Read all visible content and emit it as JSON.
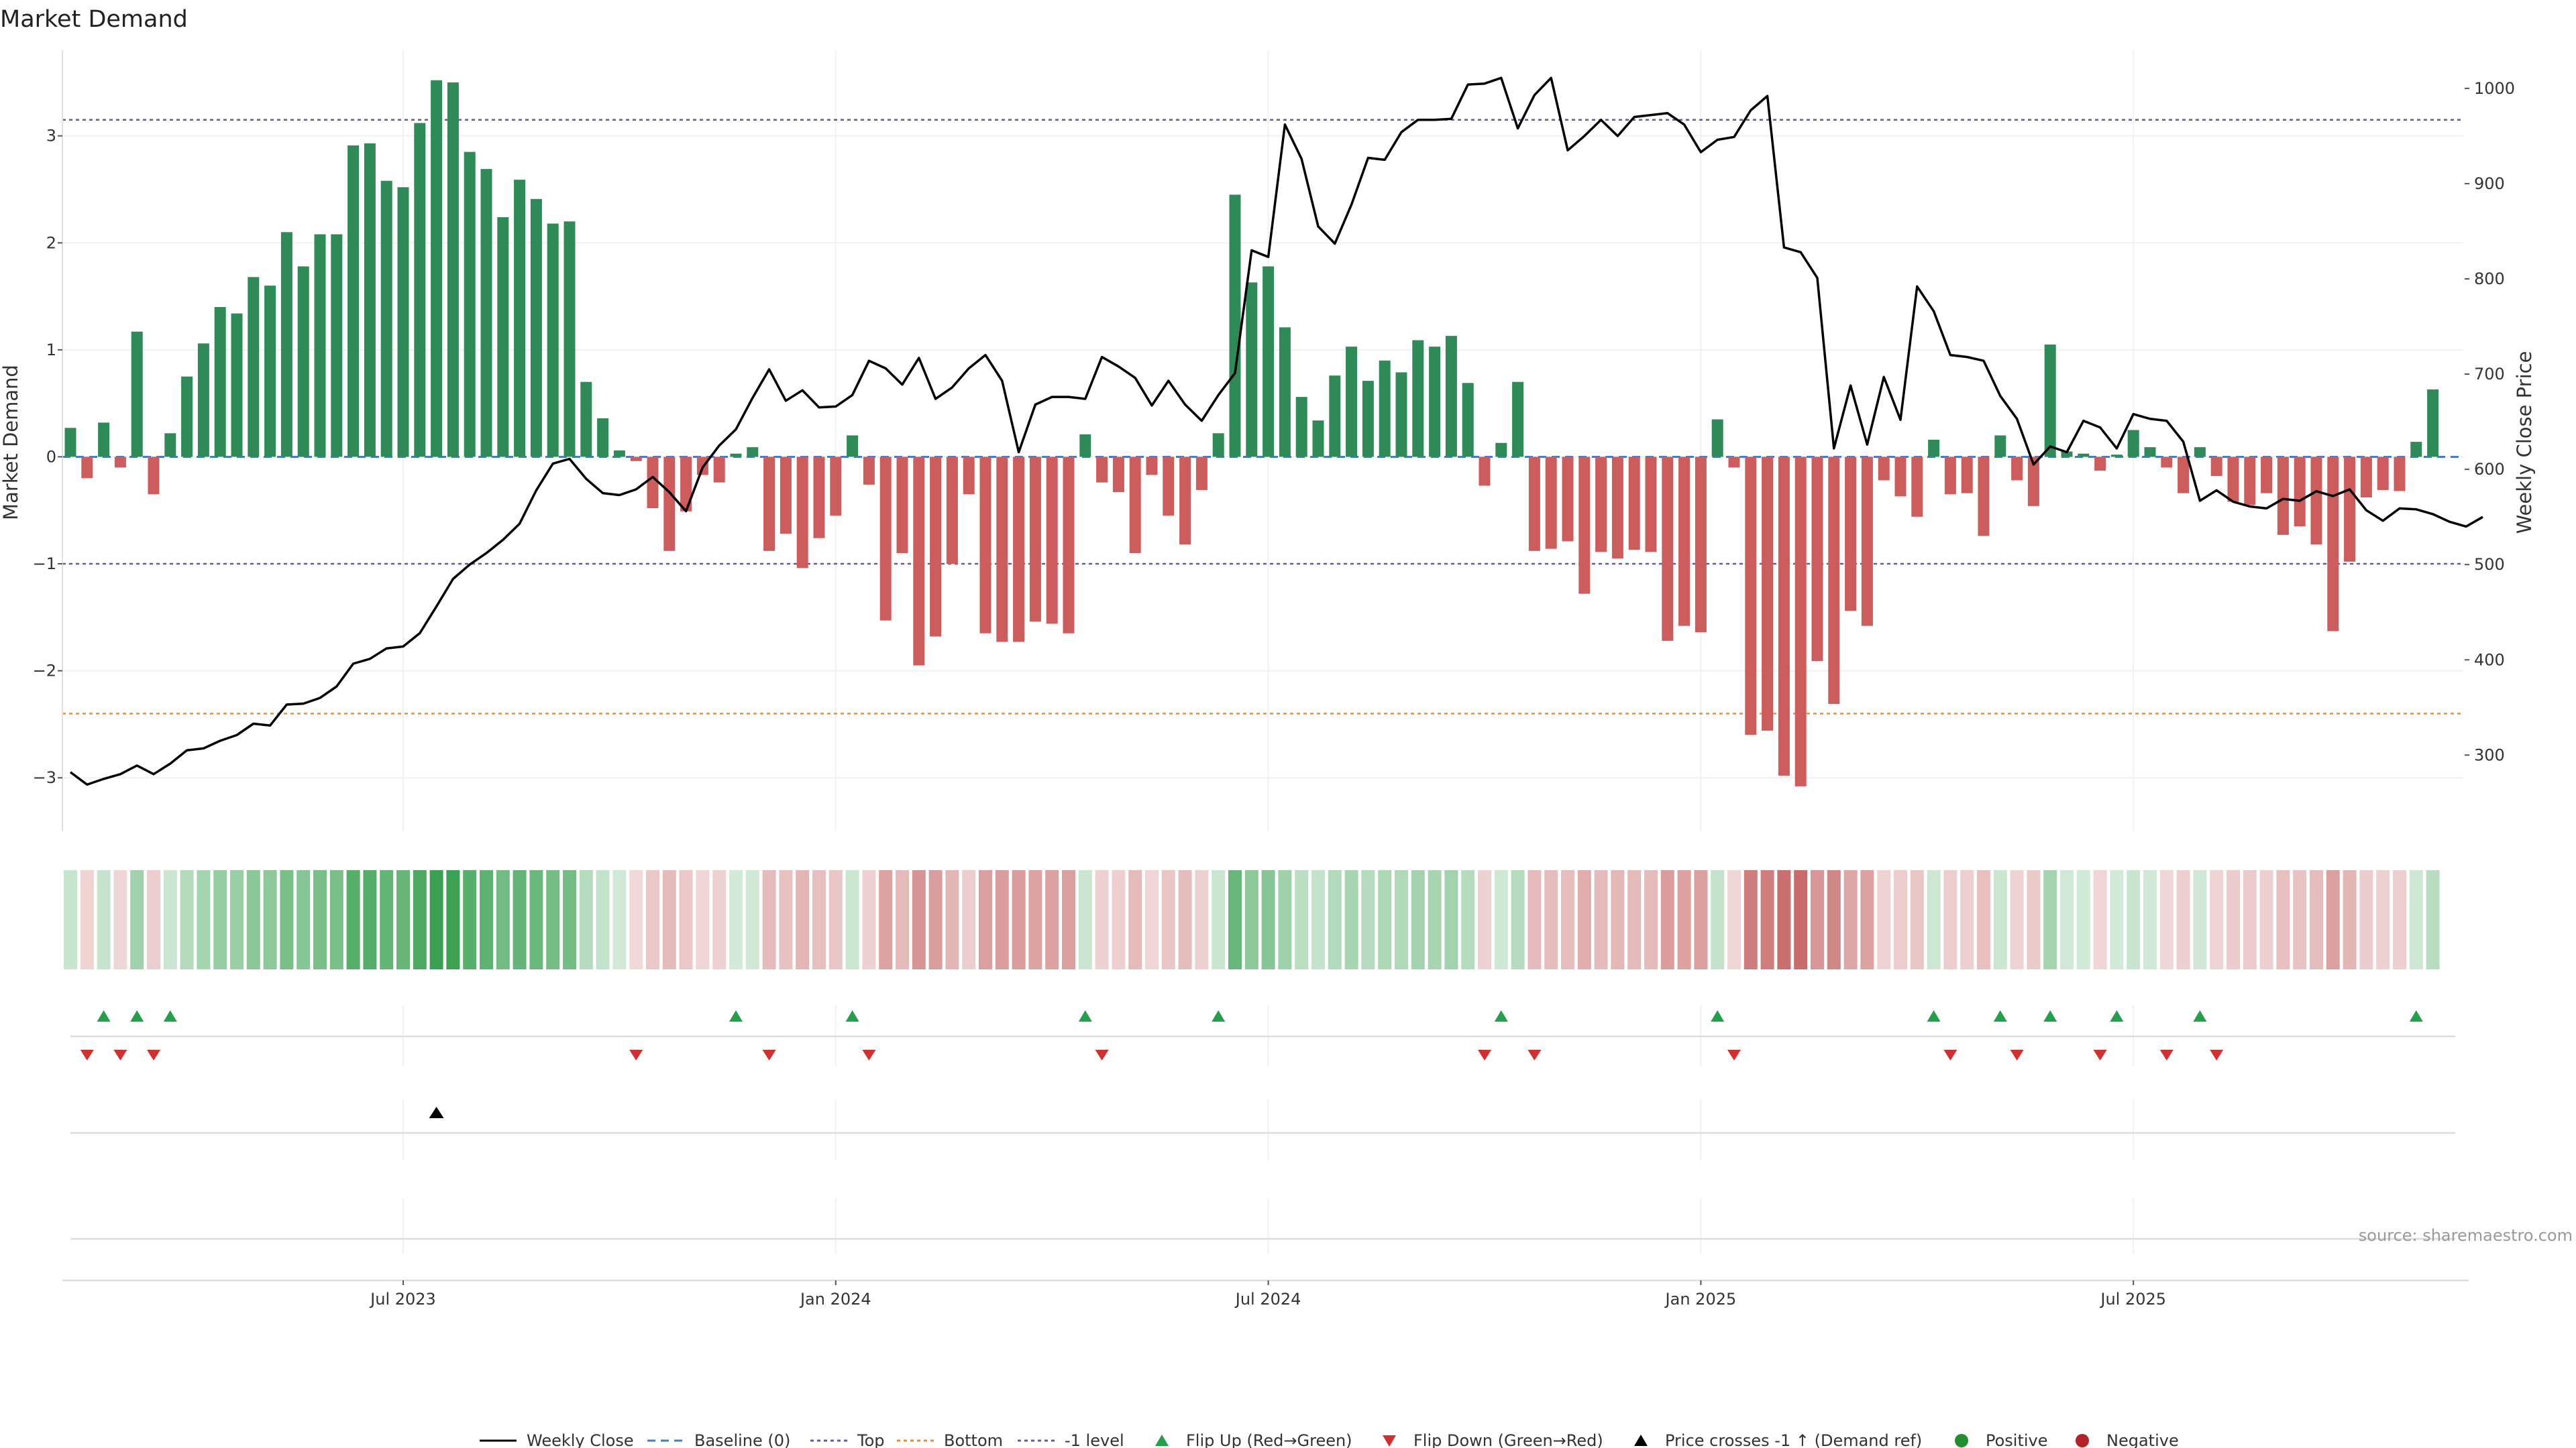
{
  "chart_data": {
    "type": "bar",
    "title": "Market Demand",
    "ylabel": "Market Demand",
    "y2label": "Weekly Close Price",
    "source": "source: sharemaestro.com",
    "ylim": [
      -3.5,
      3.8
    ],
    "y2lim": [
      220,
      1040
    ],
    "yticks": [
      -3,
      -2,
      -1,
      0,
      1,
      2,
      3
    ],
    "yticklabels": [
      "−3",
      "−2",
      "−1",
      "0",
      "1",
      "2",
      "3"
    ],
    "y2ticks": [
      300,
      400,
      500,
      600,
      700,
      800,
      900,
      1000
    ],
    "xticks": [
      {
        "label": "Jul 2023",
        "index": 20
      },
      {
        "label": "Jan 2024",
        "index": 46
      },
      {
        "label": "Jul 2024",
        "index": 72
      },
      {
        "label": "Jan 2025",
        "index": 98
      },
      {
        "label": "Jul 2025",
        "index": 124
      }
    ],
    "grid": true,
    "legend_position": "bottom",
    "levels": {
      "top": 3.15,
      "bottom": -2.4,
      "minus_one": -1.0,
      "baseline": 0
    },
    "demand": [
      0.27,
      -0.2,
      0.32,
      -0.1,
      1.17,
      -0.35,
      0.22,
      0.75,
      1.06,
      1.4,
      1.34,
      1.68,
      1.6,
      2.1,
      1.78,
      2.08,
      2.08,
      2.91,
      2.93,
      2.58,
      2.52,
      3.12,
      3.52,
      3.5,
      2.85,
      2.69,
      2.24,
      2.59,
      2.41,
      2.18,
      2.2,
      0.7,
      0.36,
      0.06,
      -0.04,
      -0.48,
      -0.88,
      -0.51,
      -0.17,
      -0.24,
      0.03,
      0.09,
      -0.88,
      -0.72,
      -1.04,
      -0.76,
      -0.55,
      0.2,
      -0.26,
      -1.53,
      -0.9,
      -1.95,
      -1.68,
      -1.0,
      -0.35,
      -1.65,
      -1.73,
      -1.73,
      -1.54,
      -1.56,
      -1.65,
      0.21,
      -0.24,
      -0.33,
      -0.9,
      -0.17,
      -0.55,
      -0.82,
      -0.31,
      0.22,
      2.45,
      1.63,
      1.78,
      1.21,
      0.56,
      0.34,
      0.76,
      1.03,
      0.71,
      0.9,
      0.79,
      1.09,
      1.03,
      1.13,
      0.69,
      -0.27,
      0.13,
      0.7,
      -0.88,
      -0.86,
      -0.79,
      -1.28,
      -0.89,
      -0.95,
      -0.87,
      -0.89,
      -1.72,
      -1.58,
      -1.64,
      0.35,
      -0.1,
      -2.6,
      -2.56,
      -2.98,
      -3.08,
      -1.91,
      -2.31,
      -1.44,
      -1.58,
      -0.22,
      -0.37,
      -0.56,
      0.16,
      -0.35,
      -0.34,
      -0.74,
      0.2,
      -0.22,
      -0.46,
      1.05,
      0.05,
      0.03,
      -0.13,
      0.02,
      0.25,
      0.09,
      -0.1,
      -0.34,
      0.09,
      -0.18,
      -0.42,
      -0.45,
      -0.34,
      -0.73,
      -0.65,
      -0.82,
      -1.63,
      -0.98,
      -0.38,
      -0.31,
      -0.32,
      0.14,
      0.63
    ],
    "weekly_close": [
      282,
      269,
      275,
      280,
      289,
      280,
      291,
      305,
      307,
      315,
      321,
      333,
      331,
      353,
      354,
      360,
      372,
      396,
      401,
      412,
      414,
      428,
      456,
      485,
      500,
      512,
      526,
      543,
      578,
      606,
      611,
      590,
      575,
      573,
      579,
      592,
      576,
      556,
      602,
      625,
      642,
      675,
      705,
      672,
      683,
      665,
      666,
      678,
      714,
      706,
      689,
      717,
      674,
      686,
      706,
      720,
      693,
      618,
      668,
      676,
      676,
      674,
      718,
      708,
      696,
      667,
      693,
      668,
      651,
      678,
      701,
      830,
      823,
      962,
      926,
      855,
      837,
      878,
      927,
      925,
      954,
      967,
      967,
      968,
      1004,
      1005,
      1011,
      958,
      993,
      1011,
      935,
      950,
      967,
      950,
      970,
      972,
      974,
      962,
      933,
      946,
      949,
      977,
      992,
      833,
      828,
      801,
      622,
      688,
      626,
      697,
      652,
      792,
      766,
      720,
      718,
      714,
      677,
      653,
      605,
      624,
      618,
      651,
      644,
      622,
      658,
      653,
      651,
      629,
      567,
      578,
      566,
      561,
      559,
      569,
      567,
      577,
      572,
      579,
      557,
      546,
      559,
      558,
      553,
      545,
      540,
      550
    ]
  },
  "legend": {
    "items": [
      {
        "label": "Weekly Close"
      },
      {
        "label": "Baseline (0)"
      },
      {
        "label": "Top"
      },
      {
        "label": "Bottom"
      },
      {
        "label": "-1 level"
      },
      {
        "label": "Flip Up (Red→Green)"
      },
      {
        "label": "Flip Down (Green→Red)"
      },
      {
        "label": "Price crosses -1 ↑ (Demand ref)"
      },
      {
        "label": "Positive"
      },
      {
        "label": "Negative"
      }
    ]
  },
  "colors": {
    "positive": "#2e8b57",
    "negative": "#cd5c5c",
    "heat_positive": "#3aa152",
    "heat_negative": "#c25b5b",
    "flip_up": "#22a04b",
    "flip_down": "#d32f2f",
    "line": "#000000",
    "baseline": "#4a7bc8",
    "top": "#6a5a9c",
    "bottom": "#ee8d2c",
    "minus_one": "#6a5a9c",
    "positive_dot": "#1f8f2f",
    "negative_dot": "#b52226"
  }
}
